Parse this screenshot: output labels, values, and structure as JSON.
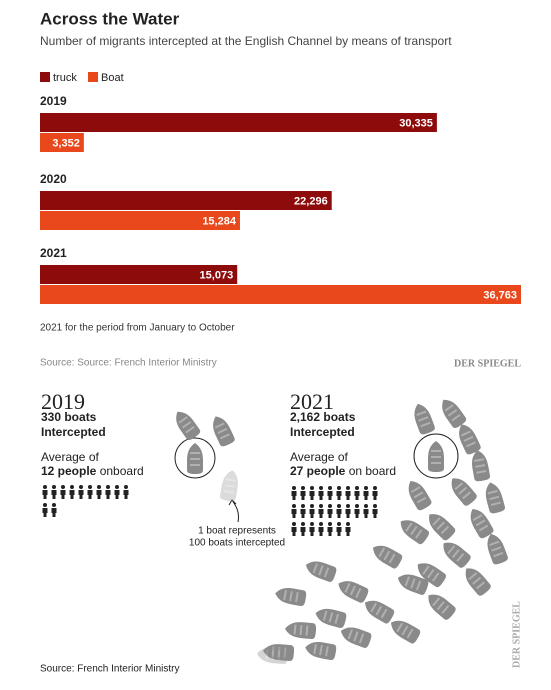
{
  "chart_data": {
    "type": "bar",
    "orientation": "horizontal",
    "title": "Across the Water",
    "subtitle": "Number of migrants intercepted at the English Channel by means of transport",
    "categories": [
      "2019",
      "2020",
      "2021"
    ],
    "series": [
      {
        "name": "truck",
        "color": "#8e0b0b",
        "values": [
          30335,
          22296,
          15073
        ],
        "value_labels": [
          "30,335",
          "22,296",
          "15,073"
        ]
      },
      {
        "name": "Boat",
        "color": "#e8481b",
        "values": [
          3352,
          15284,
          36763
        ],
        "value_labels": [
          "3,352",
          "15,284",
          "36,763"
        ]
      }
    ],
    "note": "2021 for the period from January to October",
    "source": "Source: Source: French Interior Ministry",
    "brand": "DER SPIEGEL"
  },
  "infographic": {
    "left": {
      "year": "2019",
      "boats": "330 boats",
      "intercepted": "Intercepted",
      "average": "Average of",
      "people": "12 people",
      "board": " onboard"
    },
    "right": {
      "year": "2021",
      "boats": "2,162 boats",
      "intercepted": "Intercepted",
      "average": "Average of",
      "people": "27 people",
      "board": " on board"
    },
    "legend_line1": "1 boat represents",
    "legend_line2": "100 boats intercepted",
    "source": "Source: French Interior Ministry",
    "brand": "DER SPIEGEL"
  }
}
